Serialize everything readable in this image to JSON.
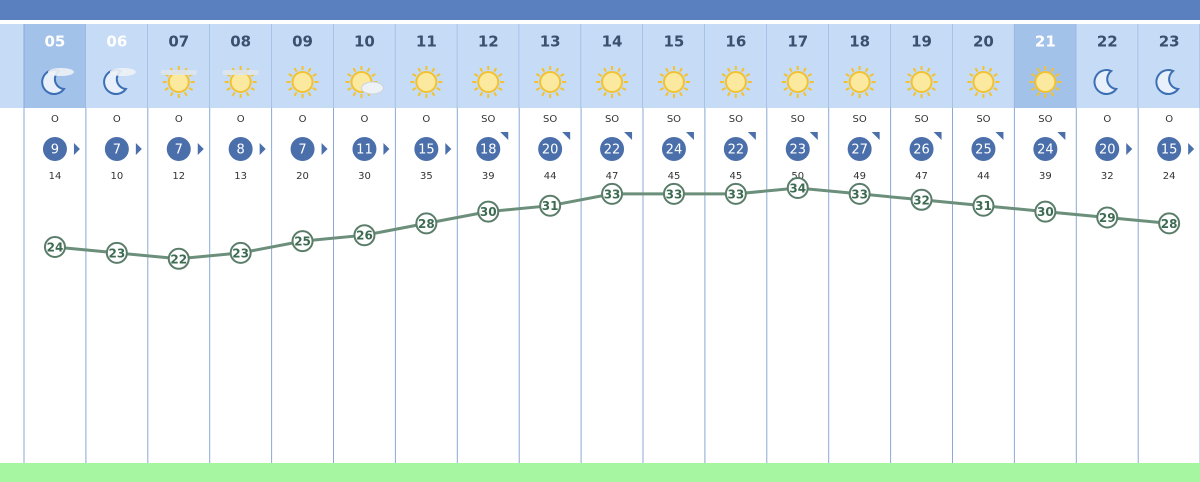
{
  "hours": [
    {
      "hour": "05",
      "direction": "O",
      "wind": 9,
      "gust": 14,
      "temp": 24
    },
    {
      "hour": "06",
      "direction": "O",
      "wind": 7,
      "gust": 10,
      "temp": 23
    },
    {
      "hour": "07",
      "direction": "O",
      "wind": 7,
      "gust": 12,
      "temp": 22
    },
    {
      "hour": "08",
      "direction": "O",
      "wind": 8,
      "gust": 13,
      "temp": 23
    },
    {
      "hour": "09",
      "direction": "O",
      "wind": 7,
      "gust": 20,
      "temp": 25
    },
    {
      "hour": "10",
      "direction": "O",
      "wind": 11,
      "gust": 30,
      "temp": 26
    },
    {
      "hour": "11",
      "direction": "O",
      "wind": 15,
      "gust": 35,
      "temp": 28
    },
    {
      "hour": "12",
      "direction": "SO",
      "wind": 18,
      "gust": 39,
      "temp": 30
    },
    {
      "hour": "13",
      "direction": "SO",
      "wind": 20,
      "gust": 44,
      "temp": 31
    },
    {
      "hour": "14",
      "direction": "SO",
      "wind": 22,
      "gust": 47,
      "temp": 33
    },
    {
      "hour": "15",
      "direction": "SO",
      "wind": 24,
      "gust": 45,
      "temp": 33
    },
    {
      "hour": "16",
      "direction": "SO",
      "wind": 22,
      "gust": 45,
      "temp": 33
    },
    {
      "hour": "17",
      "direction": "SO",
      "wind": 23,
      "gust": 50,
      "temp": 34
    },
    {
      "hour": "18",
      "direction": "SO",
      "wind": 27,
      "gust": 49,
      "temp": 33
    },
    {
      "hour": "19",
      "direction": "SO",
      "wind": 26,
      "gust": 47,
      "temp": 32
    },
    {
      "hour": "20",
      "direction": "SO",
      "wind": 25,
      "gust": 44,
      "temp": 31
    },
    {
      "hour": "21",
      "direction": "SO",
      "wind": 24,
      "gust": 39,
      "temp": 30
    },
    {
      "hour": "22",
      "direction": "O",
      "wind": 20,
      "gust": 32,
      "temp": 29
    },
    {
      "hour": "23",
      "direction": "O",
      "wind": 15,
      "gust": 24,
      "temp": 28
    }
  ]
}
